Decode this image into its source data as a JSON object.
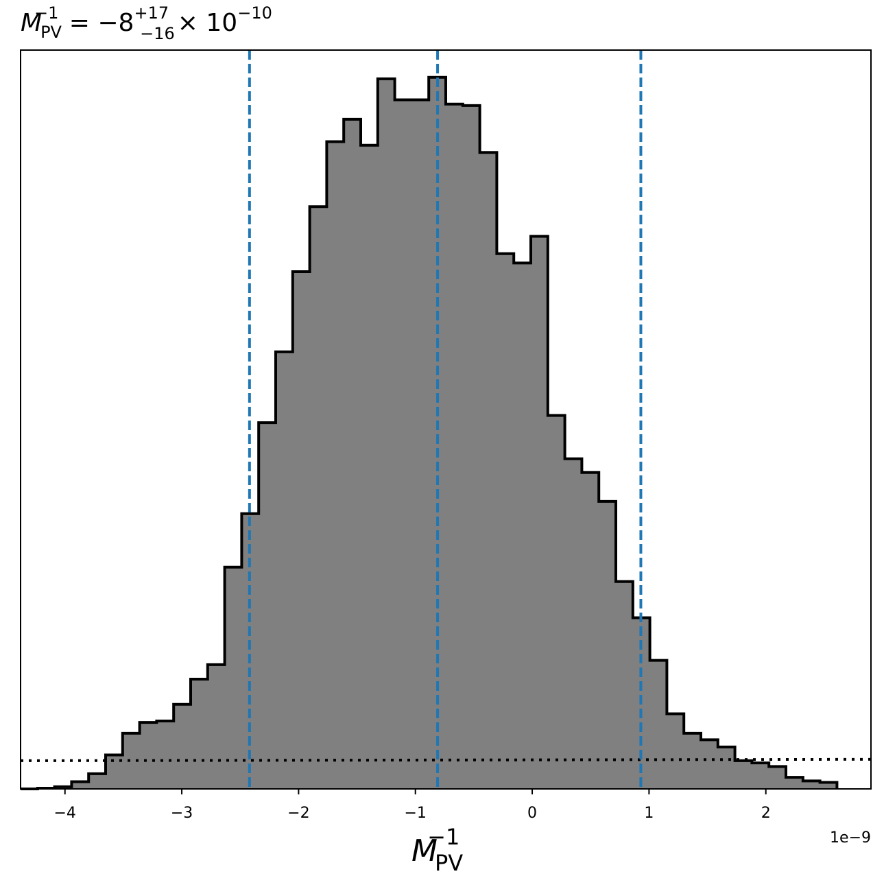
{
  "chart_data": {
    "type": "histogram",
    "title": {
      "symbol": "M",
      "sub": "PV",
      "sup": "−1",
      "equals": " = −8",
      "plus": "+17",
      "minus": "−16",
      "times": "× 10",
      "exp": "−10"
    },
    "xlabel": {
      "symbol": "M",
      "sub": "PV",
      "sup": "−1"
    },
    "offset_text": "1e−9",
    "x_unit_scale": 1e-09,
    "xlim": [
      -4.38,
      2.9
    ],
    "ylim": [
      0,
      1.0
    ],
    "y_axis_visible": false,
    "xticks": [
      -4,
      -3,
      -2,
      -1,
      0,
      1,
      2
    ],
    "xtick_labels": [
      "−4",
      "−3",
      "−2",
      "−1",
      "0",
      "1",
      "2"
    ],
    "bin_start": -4.38,
    "bin_width": 0.1456,
    "counts": [
      0.0,
      0.001,
      0.003,
      0.01,
      0.021,
      0.047,
      0.077,
      0.092,
      0.094,
      0.117,
      0.152,
      0.172,
      0.307,
      0.381,
      0.507,
      0.605,
      0.716,
      0.806,
      0.896,
      0.927,
      0.891,
      0.983,
      0.954,
      0.954,
      0.985,
      0.948,
      0.946,
      0.881,
      0.741,
      0.728,
      0.765,
      0.517,
      0.457,
      0.438,
      0.398,
      0.287,
      0.237,
      0.178,
      0.104,
      0.077,
      0.068,
      0.058,
      0.039,
      0.036,
      0.031,
      0.016,
      0.011,
      0.009
    ],
    "quantile_lines": [
      -2.42,
      -0.81,
      0.93
    ],
    "prior_line": {
      "x": [
        -4.38,
        2.9
      ],
      "y": [
        0.039,
        0.041
      ]
    },
    "colors": {
      "fill": "#808080",
      "edge": "#000000",
      "quantile": "#1f77b4",
      "prior": "#000000"
    }
  }
}
